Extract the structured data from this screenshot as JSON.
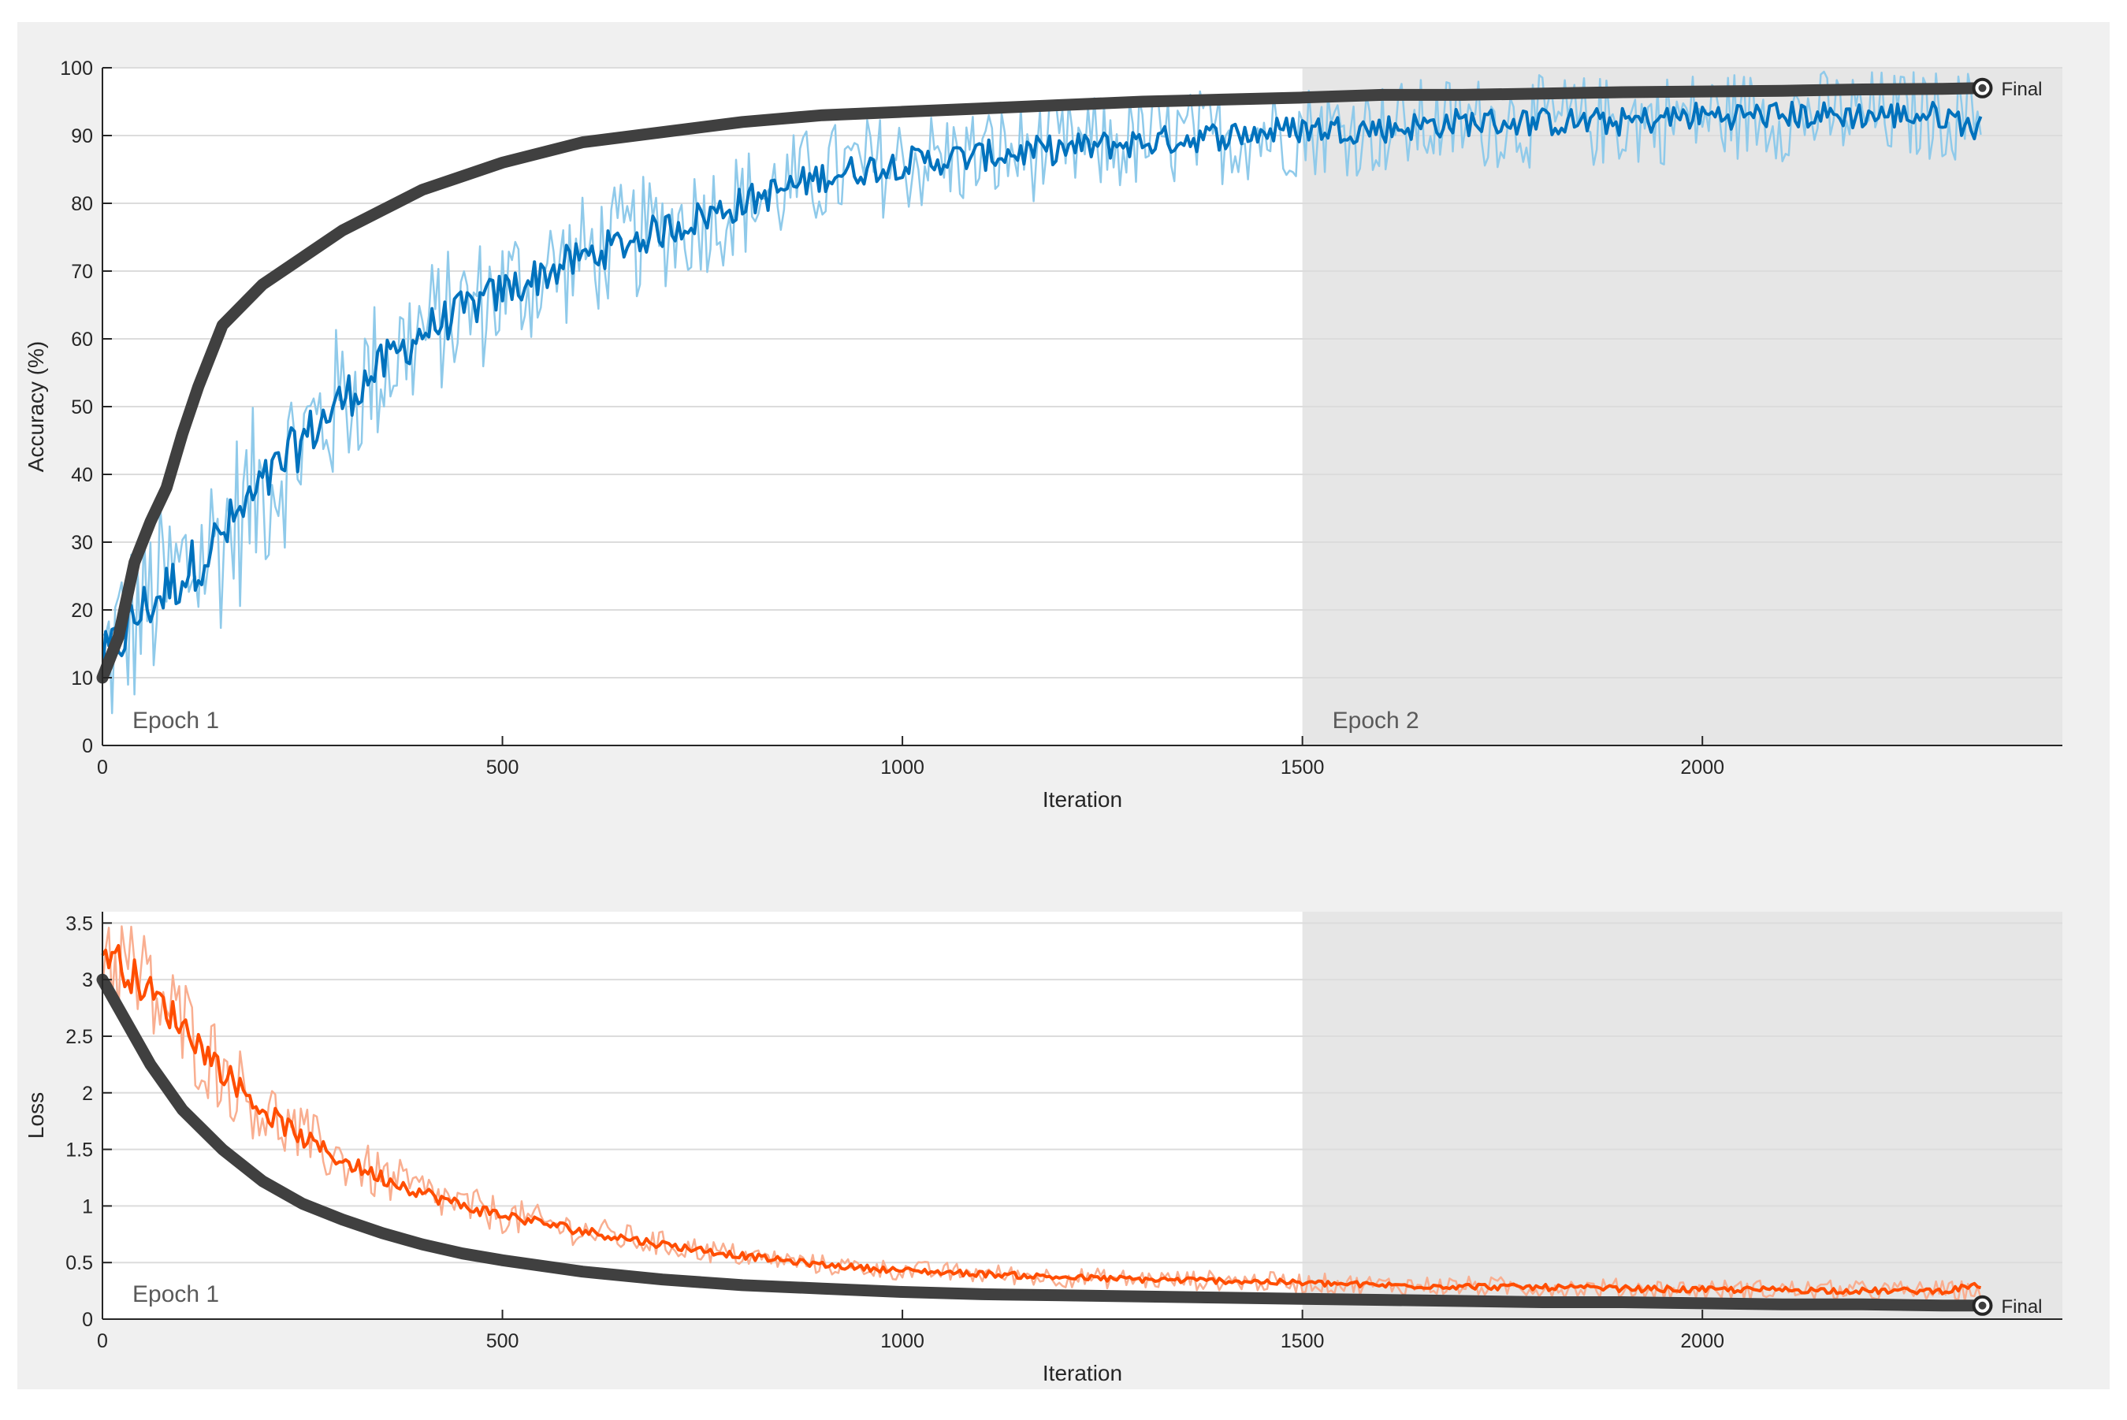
{
  "colors": {
    "background": "#f0f0f0",
    "plot_bg": "#ffffff",
    "epoch2_shade": "#e6e6e6",
    "grid": "#dcdcdc",
    "axis": "#262626",
    "smoothed_line": "#404040",
    "accuracy_raw": "#8fcaea",
    "accuracy_smooth": "#0072bd",
    "loss_raw": "#f9ae90",
    "loss_smooth": "#ff4d00"
  },
  "chart_data": [
    {
      "type": "line",
      "panel": "accuracy",
      "xlabel": "Iteration",
      "ylabel": "Accuracy (%)",
      "xlim": [
        0,
        2450
      ],
      "ylim": [
        0,
        100
      ],
      "xticks": [
        "0",
        "500",
        "1000",
        "1500",
        "2000"
      ],
      "xtick_values": [
        0,
        500,
        1000,
        1500,
        2000
      ],
      "yticks": [
        "0",
        "10",
        "20",
        "30",
        "40",
        "50",
        "60",
        "70",
        "80",
        "90",
        "100"
      ],
      "ytick_values": [
        0,
        10,
        20,
        30,
        40,
        50,
        60,
        70,
        80,
        90,
        100
      ],
      "grid": true,
      "epochs": [
        {
          "label": "Epoch 1",
          "start": 0,
          "end": 1500
        },
        {
          "label": "Epoch 2",
          "start": 1500,
          "end": 2450
        }
      ],
      "final_label": "Final",
      "final_point": {
        "x": 2350,
        "y": 97
      },
      "series": [
        {
          "role": "training-raw",
          "x": [
            0,
            50,
            100,
            150,
            200,
            250,
            300,
            350,
            400,
            450,
            500,
            600,
            700,
            800,
            900,
            1000,
            1100,
            1200,
            1300,
            1400,
            1500,
            1600,
            1700,
            1800,
            1900,
            2000,
            2100,
            2200,
            2300,
            2350
          ],
          "values": [
            12,
            20,
            25,
            31,
            38,
            45,
            51,
            56,
            61,
            64,
            67,
            72,
            76,
            80,
            84,
            86,
            87,
            88,
            89,
            90,
            91,
            91,
            92,
            92,
            92,
            93,
            93,
            93,
            93,
            93
          ]
        },
        {
          "role": "training-smoothed",
          "x": [
            0,
            50,
            100,
            150,
            200,
            250,
            300,
            350,
            400,
            450,
            500,
            600,
            700,
            800,
            900,
            1000,
            1100,
            1200,
            1300,
            1400,
            1500,
            1600,
            1700,
            1800,
            1900,
            2000,
            2100,
            2200,
            2300,
            2350
          ],
          "values": [
            12,
            20,
            25,
            31,
            38,
            45,
            51,
            56,
            61,
            64,
            67,
            72,
            76,
            80,
            84,
            86,
            87,
            88,
            89,
            90,
            91,
            91,
            92,
            92,
            92,
            93,
            93,
            93,
            93,
            91
          ]
        },
        {
          "role": "smoothed-black",
          "x": [
            0,
            20,
            40,
            60,
            80,
            100,
            120,
            150,
            200,
            250,
            300,
            350,
            400,
            450,
            500,
            600,
            700,
            800,
            900,
            1000,
            1100,
            1200,
            1300,
            1400,
            1500,
            1600,
            1700,
            1800,
            1900,
            2000,
            2100,
            2200,
            2300,
            2350
          ],
          "values": [
            10,
            16,
            27,
            33,
            38,
            46,
            53,
            62,
            68,
            72,
            76,
            79,
            82,
            84,
            86,
            89,
            90.5,
            92,
            93,
            93.5,
            94,
            94.5,
            95,
            95.3,
            95.6,
            96,
            96,
            96.2,
            96.4,
            96.5,
            96.6,
            96.8,
            96.9,
            97
          ]
        }
      ]
    },
    {
      "type": "line",
      "panel": "loss",
      "xlabel": "Iteration",
      "ylabel": "Loss",
      "xlim": [
        0,
        2450
      ],
      "ylim": [
        0,
        3.6
      ],
      "xticks": [
        "0",
        "500",
        "1000",
        "1500",
        "2000"
      ],
      "xtick_values": [
        0,
        500,
        1000,
        1500,
        2000
      ],
      "yticks": [
        "0",
        "0.5",
        "1",
        "1.5",
        "2",
        "2.5",
        "3",
        "3.5"
      ],
      "ytick_values": [
        0,
        0.5,
        1,
        1.5,
        2,
        2.5,
        3,
        3.5
      ],
      "grid": true,
      "epochs": [
        {
          "label": "Epoch 1",
          "start": 0,
          "end": 1500
        },
        {
          "label": "",
          "start": 1500,
          "end": 2450
        }
      ],
      "final_label": "Final",
      "final_point": {
        "x": 2350,
        "y": 0.12
      },
      "series": [
        {
          "role": "training-raw",
          "x": [
            0,
            50,
            100,
            150,
            200,
            250,
            300,
            350,
            400,
            450,
            500,
            600,
            700,
            800,
            900,
            1000,
            1100,
            1200,
            1300,
            1400,
            1500,
            1600,
            1700,
            1800,
            1900,
            2000,
            2100,
            2200,
            2300,
            2350
          ],
          "values": [
            3.3,
            2.95,
            2.6,
            2.2,
            1.85,
            1.6,
            1.4,
            1.25,
            1.12,
            1.0,
            0.92,
            0.78,
            0.66,
            0.56,
            0.48,
            0.43,
            0.4,
            0.37,
            0.35,
            0.34,
            0.32,
            0.3,
            0.29,
            0.28,
            0.27,
            0.26,
            0.26,
            0.25,
            0.25,
            0.25
          ]
        },
        {
          "role": "training-smoothed",
          "x": [
            0,
            50,
            100,
            150,
            200,
            250,
            300,
            350,
            400,
            450,
            500,
            600,
            700,
            800,
            900,
            1000,
            1100,
            1200,
            1300,
            1400,
            1500,
            1600,
            1700,
            1800,
            1900,
            2000,
            2100,
            2200,
            2300,
            2350
          ],
          "values": [
            3.3,
            2.95,
            2.6,
            2.2,
            1.85,
            1.6,
            1.4,
            1.25,
            1.12,
            1.0,
            0.92,
            0.78,
            0.66,
            0.56,
            0.48,
            0.43,
            0.4,
            0.37,
            0.35,
            0.34,
            0.32,
            0.3,
            0.29,
            0.28,
            0.27,
            0.26,
            0.26,
            0.25,
            0.25,
            0.3
          ]
        },
        {
          "role": "smoothed-black",
          "x": [
            0,
            20,
            40,
            60,
            80,
            100,
            150,
            200,
            250,
            300,
            350,
            400,
            450,
            500,
            600,
            700,
            800,
            900,
            1000,
            1100,
            1200,
            1300,
            1400,
            1500,
            1600,
            1700,
            1800,
            1900,
            2000,
            2100,
            2200,
            2300,
            2350
          ],
          "values": [
            3.0,
            2.75,
            2.5,
            2.25,
            2.05,
            1.85,
            1.5,
            1.22,
            1.02,
            0.88,
            0.76,
            0.66,
            0.58,
            0.52,
            0.42,
            0.35,
            0.3,
            0.27,
            0.24,
            0.22,
            0.21,
            0.2,
            0.19,
            0.18,
            0.17,
            0.16,
            0.15,
            0.15,
            0.14,
            0.13,
            0.13,
            0.12,
            0.12
          ]
        }
      ]
    }
  ]
}
